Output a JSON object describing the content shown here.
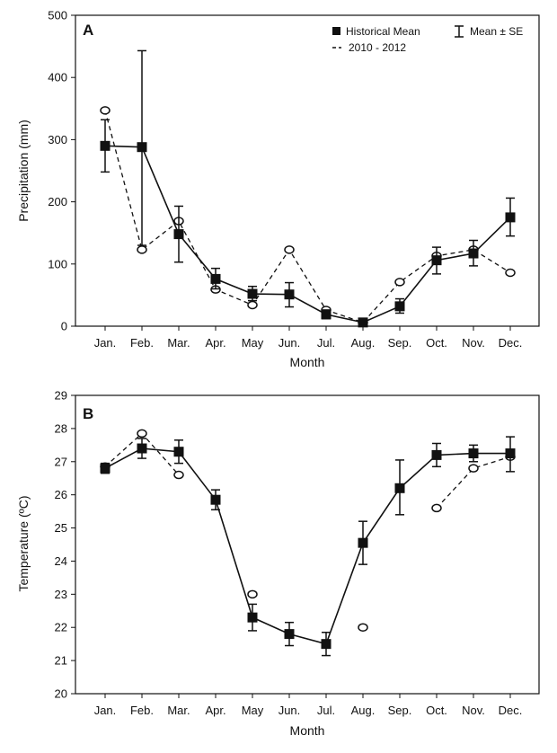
{
  "chart_data": [
    {
      "type": "line",
      "panel_label": "A",
      "xlabel": "Month",
      "ylabel": "Precipitation (mm)",
      "ylim": [
        0,
        500
      ],
      "yticks": [
        0,
        100,
        200,
        300,
        400,
        500
      ],
      "categories": [
        "Jan.",
        "Feb.",
        "Mar.",
        "Apr.",
        "May",
        "Jun.",
        "Jul.",
        "Aug.",
        "Sep.",
        "Oct.",
        "Nov.",
        "Dec."
      ],
      "legend": {
        "placement": "top-right",
        "historical_label": "Historical Mean",
        "se_label": "Mean ± SE",
        "recent_label": "2010 - 2012"
      },
      "series": [
        {
          "name": "Historical Mean",
          "style": "solid-square",
          "values": [
            290,
            288,
            148,
            76,
            52,
            51,
            19,
            6,
            32,
            106,
            117,
            175
          ],
          "se_lower": [
            248,
            130,
            103,
            60,
            41,
            31,
            12,
            3,
            21,
            84,
            97,
            145
          ],
          "se_upper": [
            332,
            443,
            193,
            93,
            64,
            70,
            26,
            9,
            44,
            127,
            138,
            206
          ]
        },
        {
          "name": "2010 - 2012",
          "style": "dashed-open-circle",
          "values": [
            347,
            123,
            169,
            59,
            34,
            123,
            26,
            6,
            71,
            113,
            123,
            86
          ]
        }
      ]
    },
    {
      "type": "line",
      "panel_label": "B",
      "xlabel": "Month",
      "ylabel": "Temperature (ºC)",
      "ylim": [
        20,
        29
      ],
      "yticks": [
        20,
        21,
        22,
        23,
        24,
        25,
        26,
        27,
        28,
        29
      ],
      "categories": [
        "Jan.",
        "Feb.",
        "Mar.",
        "Apr.",
        "May",
        "Jun.",
        "Jul.",
        "Aug.",
        "Sep.",
        "Oct.",
        "Nov.",
        "Dec."
      ],
      "series": [
        {
          "name": "Historical Mean",
          "style": "solid-square",
          "values": [
            26.8,
            27.4,
            27.3,
            25.85,
            22.3,
            21.8,
            21.5,
            24.55,
            26.2,
            27.2,
            27.25,
            27.25
          ],
          "se_lower": [
            26.65,
            27.1,
            26.95,
            25.55,
            21.9,
            21.45,
            21.15,
            23.9,
            25.4,
            26.85,
            27.0,
            26.7
          ],
          "se_upper": [
            26.95,
            27.7,
            27.65,
            26.15,
            22.7,
            22.15,
            21.85,
            25.2,
            27.05,
            27.55,
            27.5,
            27.75
          ]
        },
        {
          "name": "2010 - 2012",
          "style": "dashed-open-circle",
          "values": [
            26.85,
            27.85,
            26.6,
            null,
            23.0,
            null,
            null,
            22.0,
            null,
            25.6,
            26.8,
            27.15
          ],
          "dashed_segments": [
            [
              0,
              2
            ],
            [
              9,
              11
            ]
          ]
        }
      ]
    }
  ]
}
